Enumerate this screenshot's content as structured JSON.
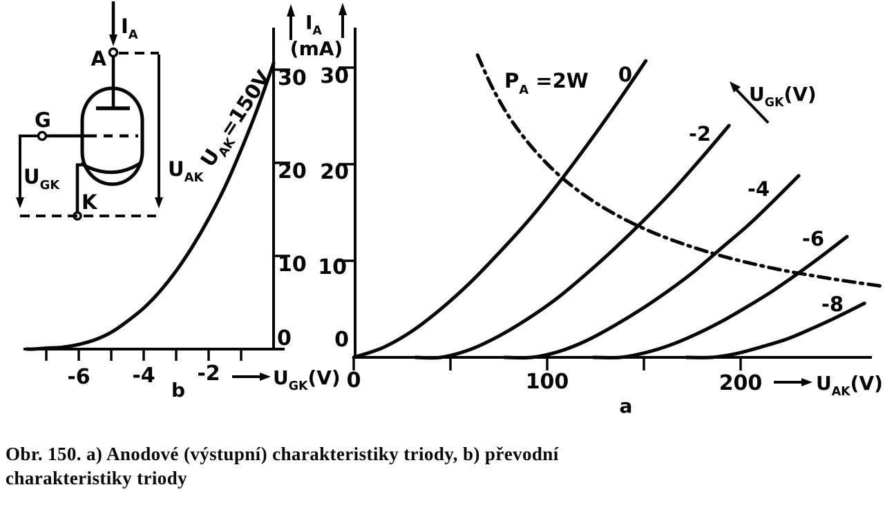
{
  "figure": {
    "caption_line1": "Obr. 150. a) Anodové (výstupní) charakteristiky triody, b) převodní",
    "caption_line2": "charakteristiky triody",
    "sublabel_a": "a",
    "sublabel_b": "b"
  },
  "circuit": {
    "current_label": {
      "main": "I",
      "sub": "A"
    },
    "anode_label": "A",
    "grid_label": "G",
    "cathode_label": "K",
    "ugk_label": {
      "main": "U",
      "sub": "GK"
    },
    "uak_label": {
      "main": "U",
      "sub": "AK"
    }
  },
  "chart_data": [
    {
      "id": "a",
      "type": "line",
      "title": "Anodové (výstupní) charakteristiky triody",
      "xlabel": {
        "main": "U",
        "sub": "AK",
        "unit": "(V)"
      },
      "ylabel": {
        "main": "I",
        "sub": "A",
        "unit": "(mA)"
      },
      "xlim": [
        0,
        268
      ],
      "ylim": [
        0,
        34
      ],
      "grid": false,
      "x_ticks": [
        0,
        50,
        100,
        150,
        200
      ],
      "x_tick_labels": [
        "0",
        "",
        "100",
        "",
        "200"
      ],
      "y_ticks": [
        0,
        10,
        20,
        30
      ],
      "y_tick_labels": [
        "0",
        "10",
        "20",
        "30"
      ],
      "family_label": {
        "main": "U",
        "sub": "GK",
        "unit": "(V)"
      },
      "series": [
        {
          "name": "0",
          "ugk_volts": 0,
          "points": [
            [
              0,
              0
            ],
            [
              15,
              1.0
            ],
            [
              30,
              2.7
            ],
            [
              45,
              5.0
            ],
            [
              60,
              7.7
            ],
            [
              75,
              10.8
            ],
            [
              90,
              14.1
            ],
            [
              105,
              17.8
            ],
            [
              120,
              21.8
            ],
            [
              135,
              26.0
            ],
            [
              151,
              30.7
            ]
          ]
        },
        {
          "name": "-2",
          "ugk_volts": -2,
          "points": [
            [
              32,
              0
            ],
            [
              45,
              0
            ],
            [
              60,
              0.8
            ],
            [
              75,
              2.2
            ],
            [
              90,
              4.0
            ],
            [
              105,
              6.1
            ],
            [
              120,
              8.6
            ],
            [
              135,
              11.3
            ],
            [
              150,
              14.2
            ],
            [
              165,
              17.3
            ],
            [
              180,
              20.7
            ],
            [
              194,
              24.0
            ]
          ]
        },
        {
          "name": "-4",
          "ugk_volts": -4,
          "points": [
            [
              78,
              0
            ],
            [
              92,
              0
            ],
            [
              106,
              0.6
            ],
            [
              120,
              1.7
            ],
            [
              134,
              3.2
            ],
            [
              148,
              4.9
            ],
            [
              162,
              6.8
            ],
            [
              176,
              8.9
            ],
            [
              190,
              11.3
            ],
            [
              204,
              13.7
            ],
            [
              217,
              16.2
            ],
            [
              230,
              18.8
            ]
          ]
        },
        {
          "name": "-6",
          "ugk_volts": -6,
          "points": [
            [
              124,
              0
            ],
            [
              138,
              0
            ],
            [
              151,
              0.5
            ],
            [
              164,
              1.3
            ],
            [
              177,
              2.4
            ],
            [
              190,
              3.7
            ],
            [
              203,
              5.2
            ],
            [
              216,
              6.8
            ],
            [
              229,
              8.6
            ],
            [
              242,
              10.5
            ],
            [
              255,
              12.5
            ]
          ]
        },
        {
          "name": "-8",
          "ugk_volts": -8,
          "points": [
            [
              172,
              0
            ],
            [
              185,
              0
            ],
            [
              198,
              0.4
            ],
            [
              211,
              1.1
            ],
            [
              224,
              1.9
            ],
            [
              237,
              3.0
            ],
            [
              250,
              4.2
            ],
            [
              264,
              5.6
            ]
          ]
        }
      ],
      "power_curve": {
        "label": {
          "main": "P",
          "sub": "A",
          "rest": " =2W"
        },
        "watts": 2,
        "style": "dash-dot",
        "points": [
          [
            64,
            31.3
          ],
          [
            72,
            27.8
          ],
          [
            82,
            24.4
          ],
          [
            95,
            21.1
          ],
          [
            110,
            18.2
          ],
          [
            130,
            15.4
          ],
          [
            155,
            12.9
          ],
          [
            185,
            10.8
          ],
          [
            215,
            9.3
          ],
          [
            245,
            8.2
          ],
          [
            272,
            7.4
          ]
        ]
      }
    },
    {
      "id": "b",
      "type": "line",
      "title": "Převodní charakteristika triody",
      "xlabel": {
        "main": "U",
        "sub": "GK",
        "unit": "(V)"
      },
      "ylabel": {
        "main": "I",
        "sub": "A",
        "unit": "(mA)"
      },
      "xlim": [
        -7.7,
        0
      ],
      "ylim": [
        0,
        34
      ],
      "grid": false,
      "x_ticks": [
        -7,
        -6,
        -5,
        -4,
        -3,
        -2,
        -1
      ],
      "x_tick_labels": [
        "",
        "-6",
        "",
        "-4",
        "",
        "-2",
        ""
      ],
      "y_ticks": [
        0,
        10,
        20,
        30
      ],
      "y_tick_labels": [
        "0",
        "10",
        "20",
        "30"
      ],
      "series": [
        {
          "name": {
            "main": "U",
            "sub": "AK",
            "rest": "=150V"
          },
          "points": [
            [
              -7.6,
              0
            ],
            [
              -7.4,
              0
            ],
            [
              -7,
              0.1
            ],
            [
              -6.5,
              0.2
            ],
            [
              -6,
              0.5
            ],
            [
              -5.5,
              1.0
            ],
            [
              -5,
              1.8
            ],
            [
              -4.5,
              3.0
            ],
            [
              -4,
              4.4
            ],
            [
              -3.5,
              6.2
            ],
            [
              -3,
              8.4
            ],
            [
              -2.5,
              11.0
            ],
            [
              -2,
              14.0
            ],
            [
              -1.5,
              17.4
            ],
            [
              -1,
              21.4
            ],
            [
              -0.5,
              25.8
            ],
            [
              0,
              30.7
            ]
          ]
        }
      ]
    }
  ]
}
